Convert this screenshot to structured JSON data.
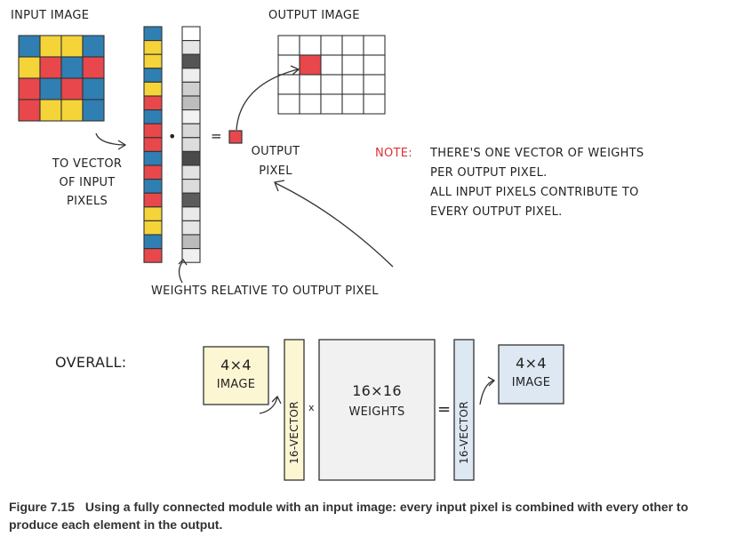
{
  "top": {
    "input_label": "INPUT IMAGE",
    "output_label": "OUTPUT IMAGE",
    "to_vector_lines": [
      "TO VECTOR",
      "OF INPUT",
      "PIXELS"
    ],
    "output_pixel_lines": [
      "OUTPUT",
      "PIXEL"
    ],
    "weights_label": "WEIGHTS RELATIVE TO OUTPUT PIXEL",
    "dot": "•",
    "equals": "=",
    "note_title": "NOTE:",
    "note_lines": [
      "THERE'S ONE VECTOR OF WEIGHTS",
      "PER OUTPUT PIXEL.",
      "ALL INPUT PIXELS CONTRIBUTE TO",
      "EVERY OUTPUT PIXEL."
    ]
  },
  "overall": {
    "label": "OVERALL:",
    "input_box": [
      "4×4",
      "IMAGE"
    ],
    "vector_left": "16-VECTOR",
    "times": "x",
    "weights_box": [
      "16×16",
      "WEIGHTS"
    ],
    "equals": "=",
    "vector_right": "16-VECTOR",
    "output_box": [
      "4×4",
      "IMAGE"
    ]
  },
  "caption": {
    "figure": "Figure 7.15",
    "text": "Using a fully connected module with an input image: every input pixel is combined with every other to produce each element in the output."
  },
  "colors": {
    "red": "#e8474c",
    "blue": "#2f7fb3",
    "yellow": "#f5d43a",
    "input_box_fill": "#fdf6d3",
    "vector_fill": "#fdf6d3",
    "weights_fill": "#f1f1f1",
    "out_vector_fill": "#dde8f3",
    "out_box_fill": "#dde8f3"
  }
}
